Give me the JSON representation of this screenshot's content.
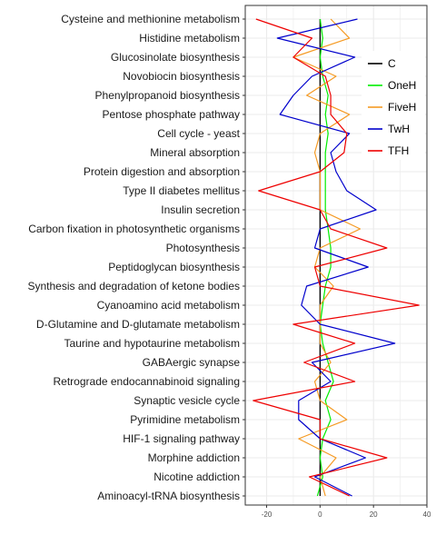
{
  "chart_data": {
    "type": "line",
    "orientation": "horizontal",
    "categories": [
      "Cysteine and methionine metabolism",
      "Histidine metabolism",
      "Glucosinolate biosynthesis",
      "Novobiocin biosynthesis",
      "Phenylpropanoid biosynthesis",
      "Pentose phosphate pathway",
      "Cell cycle - yeast",
      "Mineral absorption",
      "Protein digestion and absorption",
      "Type II diabetes mellitus",
      "Insulin secretion",
      "Carbon fixation in photosynthetic organisms",
      "Photosynthesis",
      "Peptidoglycan biosynthesis",
      "Synthesis and degradation of ketone bodies",
      "Cyanoamino acid metabolism",
      "D-Glutamine and D-glutamate metabolism",
      "Taurine and hypotaurine metabolism",
      "GABAergic synapse",
      "Retrograde endocannabinoid signaling",
      "Synaptic vesicle cycle",
      "Pyrimidine metabolism",
      "HIF-1 signaling pathway",
      "Morphine addiction",
      "Nicotine addiction",
      "Aminoacyl-tRNA biosynthesis"
    ],
    "series": [
      {
        "name": "C",
        "color": "#000000",
        "values": [
          0,
          0,
          0,
          0,
          0,
          0,
          0,
          0,
          0,
          0,
          0,
          0,
          0,
          0,
          0,
          0,
          0,
          0,
          0,
          0,
          0,
          0,
          0,
          0,
          0,
          0
        ]
      },
      {
        "name": "OneH",
        "color": "#00ee00",
        "values": [
          0,
          1,
          0,
          1,
          3,
          2,
          3,
          2,
          2,
          2,
          2,
          3,
          4,
          4,
          2,
          1,
          0,
          1,
          3,
          5,
          2,
          4,
          1,
          0,
          1,
          -1
        ]
      },
      {
        "name": "FiveH",
        "color": "#f59a23",
        "values": [
          4,
          11,
          -10,
          6,
          -5,
          11,
          0,
          -2,
          0,
          0,
          0,
          15,
          0,
          -2,
          5,
          0,
          0,
          0,
          4,
          -2,
          0,
          10,
          -8,
          6,
          0,
          2
        ]
      },
      {
        "name": "TwH",
        "color": "#0000cc",
        "values": [
          14,
          -16,
          13,
          -3,
          -10,
          -15,
          11,
          4,
          6,
          10,
          21,
          0,
          -2,
          18,
          -5,
          -7,
          0,
          28,
          -3,
          4,
          -8,
          -8,
          0,
          17,
          -2,
          12
        ]
      },
      {
        "name": "TFH",
        "color": "#ee0000",
        "values": [
          -24,
          -3,
          -10,
          2,
          4,
          4,
          10,
          9,
          0,
          -23,
          0,
          4,
          25,
          -2,
          0,
          37,
          -10,
          13,
          -6,
          13,
          -25,
          0,
          0,
          25,
          -4,
          11
        ]
      }
    ],
    "xlim": [
      -28,
      40
    ],
    "xticks": [
      "-20",
      "0",
      "20",
      "40"
    ],
    "xlabel": "",
    "ylabel": "",
    "title": "",
    "grid": true,
    "legend_position": "top-right"
  }
}
